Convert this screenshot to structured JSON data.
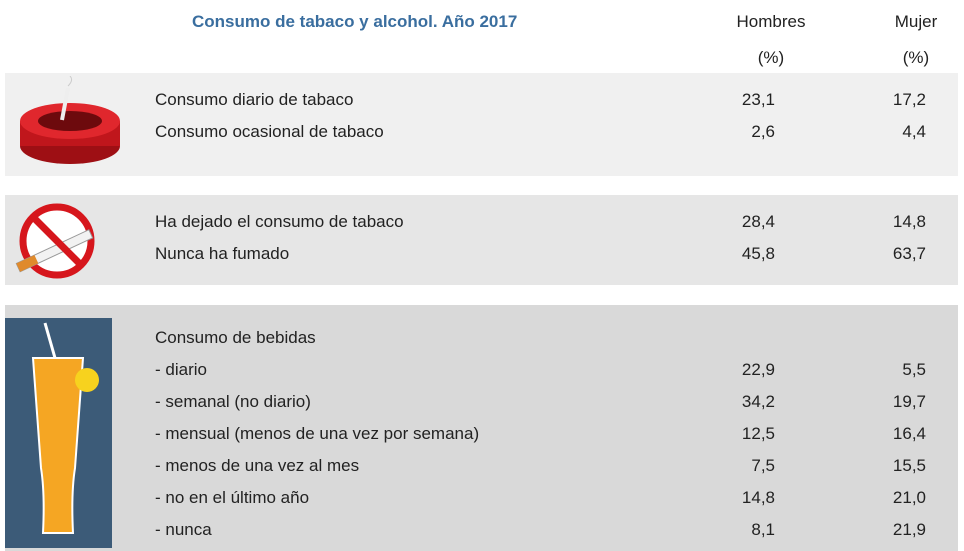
{
  "header": {
    "title": "Consumo de tabaco y alcohol. Año 2017",
    "col1": "Hombres",
    "col1_unit": "(%)",
    "col2": "Mujer",
    "col2_unit": "(%)"
  },
  "sections": [
    {
      "rows": [
        {
          "label": "Consumo diario de tabaco",
          "hombres": "23,1",
          "mujer": "17,2"
        },
        {
          "label": "Consumo ocasional de tabaco",
          "hombres": "2,6",
          "mujer": "4,4"
        }
      ]
    },
    {
      "rows": [
        {
          "label": "Ha dejado el consumo de tabaco",
          "hombres": "28,4",
          "mujer": "14,8"
        },
        {
          "label": "Nunca ha fumado",
          "hombres": "45,8",
          "mujer": "63,7"
        }
      ]
    },
    {
      "rows": [
        {
          "label": "Consumo de bebidas"
        },
        {
          "label": "- diario",
          "hombres": "22,9",
          "mujer": "5,5"
        },
        {
          "label": "- semanal (no diario)",
          "hombres": "34,2",
          "mujer": "19,7"
        },
        {
          "label": "- mensual (menos de una vez por semana)",
          "hombres": "12,5",
          "mujer": "16,4"
        },
        {
          "label": "- menos de una vez al mes",
          "hombres": "7,5",
          "mujer": "15,5"
        },
        {
          "label": "- no en el último año",
          "hombres": "14,8",
          "mujer": "21,0"
        },
        {
          "label": "- nunca",
          "hombres": "8,1",
          "mujer": "21,9"
        }
      ]
    }
  ]
}
